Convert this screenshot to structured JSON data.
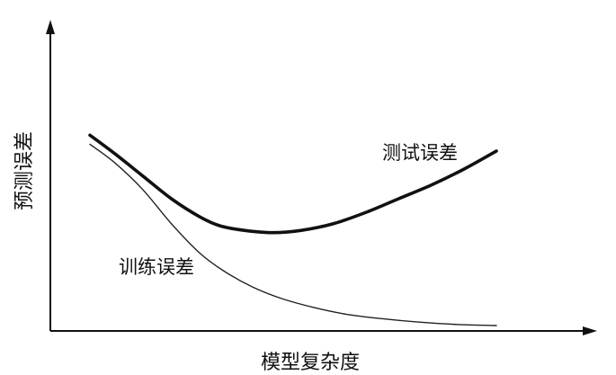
{
  "chart_data": {
    "type": "line",
    "xlabel": "模型复杂度",
    "ylabel": "预测误差",
    "x_ticks": [],
    "y_ticks": [],
    "grid": false,
    "legend": "none",
    "series": [
      {
        "name": "测试误差",
        "style": "thick",
        "x": [
          0.0,
          0.06,
          0.13,
          0.2,
          0.27,
          0.32,
          0.38,
          0.45,
          0.52,
          0.6,
          0.68,
          0.76,
          0.84,
          0.92,
          1.0
        ],
        "y": [
          0.84,
          0.76,
          0.66,
          0.56,
          0.48,
          0.44,
          0.42,
          0.41,
          0.42,
          0.45,
          0.5,
          0.56,
          0.62,
          0.69,
          0.77
        ]
      },
      {
        "name": "训练误差",
        "style": "thin",
        "x": [
          0.0,
          0.06,
          0.13,
          0.2,
          0.27,
          0.33,
          0.4,
          0.47,
          0.55,
          0.63,
          0.72,
          0.81,
          0.9,
          1.0
        ],
        "y": [
          0.8,
          0.72,
          0.6,
          0.45,
          0.32,
          0.24,
          0.17,
          0.12,
          0.08,
          0.05,
          0.03,
          0.015,
          0.005,
          0.0
        ]
      }
    ],
    "annotations": [
      {
        "series": "测试误差",
        "text": "测试误差"
      },
      {
        "series": "训练误差",
        "text": "训练误差"
      }
    ],
    "colors": {
      "axis": "#111111",
      "test_curve": "#111111",
      "train_curve": "#222222",
      "background": "#ffffff"
    }
  }
}
